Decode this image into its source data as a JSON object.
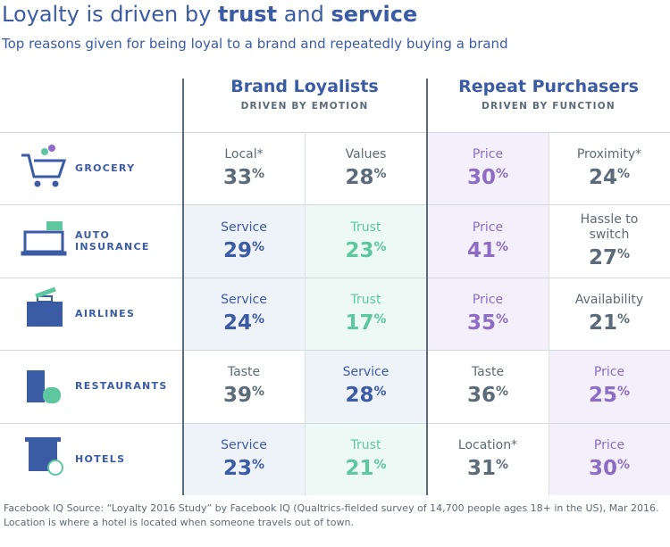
{
  "header": {
    "title": [
      "Loyalty is driven by ",
      "trust",
      " and ",
      "service"
    ],
    "subtitle": "Top reasons given for being loyal to a brand and repeatedly buying a brand"
  },
  "table": {
    "unit": "%",
    "groups": [
      {
        "name": "Brand Loyalists",
        "note": "DRIVEN BY EMOTION"
      },
      {
        "name": "Repeat Purchasers",
        "note": "DRIVEN BY FUNCTION"
      }
    ],
    "tones": {
      "gray": {
        "bg": "#ffffff",
        "fg": "#5b6b79"
      },
      "blue": {
        "bg": "#eef2f9",
        "fg": "#3b5ba5"
      },
      "green": {
        "bg": "#edf9f4",
        "fg": "#5ec7a0"
      },
      "purple": {
        "bg": "#f3f0fb",
        "fg": "#8e6cc6"
      }
    },
    "rows": [
      {
        "label": "GROCERY",
        "cells": [
          {
            "reason": "Local*",
            "value": 33,
            "tone": "gray"
          },
          {
            "reason": "Values",
            "value": 28,
            "tone": "gray"
          },
          {
            "reason": "Price",
            "value": 30,
            "tone": "purple"
          },
          {
            "reason": "Proximity*",
            "value": 24,
            "tone": "gray"
          }
        ]
      },
      {
        "label": "AUTO INSURANCE",
        "cells": [
          {
            "reason": "Service",
            "value": 29,
            "tone": "blue"
          },
          {
            "reason": "Trust",
            "value": 23,
            "tone": "green"
          },
          {
            "reason": "Price",
            "value": 41,
            "tone": "purple"
          },
          {
            "reason": "Hassle to switch",
            "value": 27,
            "tone": "gray"
          }
        ]
      },
      {
        "label": "AIRLINES",
        "cells": [
          {
            "reason": "Service",
            "value": 24,
            "tone": "blue"
          },
          {
            "reason": "Trust",
            "value": 17,
            "tone": "green"
          },
          {
            "reason": "Price",
            "value": 35,
            "tone": "purple"
          },
          {
            "reason": "Availability",
            "value": 21,
            "tone": "gray"
          }
        ]
      },
      {
        "label": "RESTAURANTS",
        "cells": [
          {
            "reason": "Taste",
            "value": 39,
            "tone": "gray"
          },
          {
            "reason": "Service",
            "value": 28,
            "tone": "blue"
          },
          {
            "reason": "Taste",
            "value": 36,
            "tone": "gray"
          },
          {
            "reason": "Price",
            "value": 25,
            "tone": "purple"
          }
        ]
      },
      {
        "label": "HOTELS",
        "cells": [
          {
            "reason": "Service",
            "value": 23,
            "tone": "blue"
          },
          {
            "reason": "Trust",
            "value": 21,
            "tone": "green"
          },
          {
            "reason": "Location*",
            "value": 31,
            "tone": "gray"
          },
          {
            "reason": "Price",
            "value": 30,
            "tone": "purple"
          }
        ]
      }
    ]
  },
  "footnote": [
    "Facebook IQ Source: “Loyalty 2016 Study” by Facebook IQ (Qualtrics-fielded survey of 14,700 people ages 18+ in the US), Mar 2016.",
    "Location is where a hotel is located when someone travels out of town."
  ]
}
